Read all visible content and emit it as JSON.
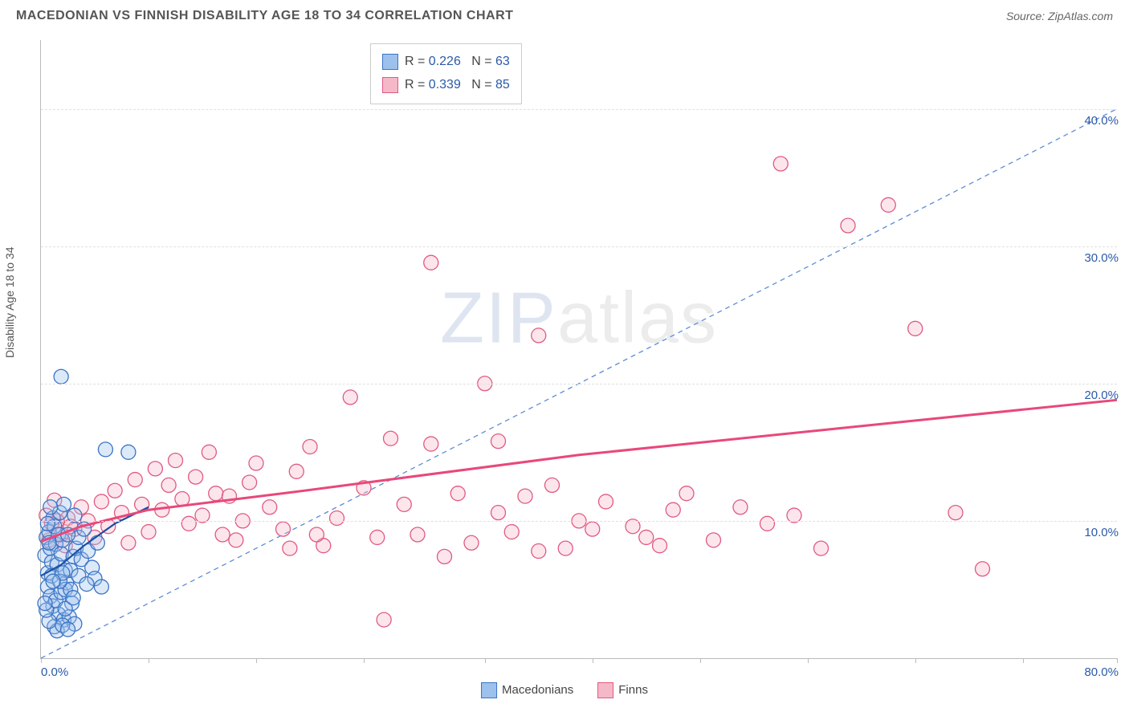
{
  "header": {
    "title": "MACEDONIAN VS FINNISH DISABILITY AGE 18 TO 34 CORRELATION CHART",
    "source_label": "Source: ",
    "source_value": "ZipAtlas.com"
  },
  "chart": {
    "type": "scatter",
    "ylabel": "Disability Age 18 to 34",
    "xlim": [
      0,
      80
    ],
    "ylim": [
      0,
      45
    ],
    "x_axis_label_min": "0.0%",
    "x_axis_label_max": "80.0%",
    "y_ticks": [
      {
        "value": 10,
        "label": "10.0%"
      },
      {
        "value": 20,
        "label": "20.0%"
      },
      {
        "value": 30,
        "label": "30.0%"
      },
      {
        "value": 40,
        "label": "40.0%"
      }
    ],
    "x_ticks": [
      0,
      8,
      16,
      24,
      33,
      41,
      49,
      57,
      65,
      73,
      80
    ],
    "background_color": "#ffffff",
    "grid_color": "#e0e0e0",
    "marker_radius": 9,
    "marker_fill_opacity": 0.35,
    "marker_stroke_width": 1.3,
    "watermark": "ZIPatlas",
    "reference_line": {
      "color": "#5b8dd6",
      "dash": "6,5",
      "width": 1.3,
      "x1": 0,
      "y1": 0,
      "x2": 80,
      "y2": 40
    }
  },
  "series": [
    {
      "id": "macedonians",
      "label": "Macedonians",
      "color_fill": "#9cc1ed",
      "color_stroke": "#3b74c4",
      "trend_color": "#1c4fa3",
      "trend_width": 2.2,
      "trend_points": [
        [
          0,
          6
        ],
        [
          1.5,
          6.8
        ],
        [
          3.2,
          8.2
        ],
        [
          5.5,
          9.8
        ],
        [
          8,
          11
        ]
      ],
      "R": "0.226",
      "N": "63",
      "points": [
        [
          0.3,
          7.5
        ],
        [
          0.4,
          8.8
        ],
        [
          0.5,
          6.2
        ],
        [
          0.6,
          9.2
        ],
        [
          0.7,
          8.0
        ],
        [
          0.8,
          7.0
        ],
        [
          0.9,
          10.2
        ],
        [
          1.0,
          9.6
        ],
        [
          1.1,
          8.3
        ],
        [
          1.2,
          6.8
        ],
        [
          1.3,
          9.0
        ],
        [
          1.4,
          10.6
        ],
        [
          1.5,
          7.6
        ],
        [
          1.6,
          8.6
        ],
        [
          1.7,
          11.2
        ],
        [
          1.8,
          6.4
        ],
        [
          0.5,
          5.2
        ],
        [
          0.7,
          4.5
        ],
        [
          0.9,
          3.8
        ],
        [
          1.1,
          4.2
        ],
        [
          1.3,
          3.2
        ],
        [
          1.5,
          4.8
        ],
        [
          1.7,
          2.8
        ],
        [
          1.9,
          5.5
        ],
        [
          2.1,
          3.0
        ],
        [
          2.3,
          4.0
        ],
        [
          2.5,
          2.5
        ],
        [
          1.0,
          2.3
        ],
        [
          1.2,
          2.0
        ],
        [
          1.6,
          2.4
        ],
        [
          2.0,
          2.1
        ],
        [
          0.6,
          2.7
        ],
        [
          0.4,
          3.5
        ],
        [
          0.8,
          6.0
        ],
        [
          2.2,
          6.4
        ],
        [
          2.4,
          7.4
        ],
        [
          2.6,
          8.0
        ],
        [
          2.8,
          8.8
        ],
        [
          3.0,
          7.2
        ],
        [
          3.2,
          9.4
        ],
        [
          3.5,
          7.8
        ],
        [
          3.8,
          6.6
        ],
        [
          4.0,
          5.8
        ],
        [
          4.2,
          8.4
        ],
        [
          4.5,
          5.2
        ],
        [
          2.0,
          9.0
        ],
        [
          2.5,
          10.4
        ],
        [
          1.8,
          5.0
        ],
        [
          2.2,
          5.0
        ],
        [
          0.3,
          4.0
        ],
        [
          0.5,
          9.8
        ],
        [
          0.7,
          11.0
        ],
        [
          1.4,
          5.6
        ],
        [
          1.6,
          6.2
        ],
        [
          2.8,
          6.0
        ],
        [
          3.4,
          5.4
        ],
        [
          4.8,
          15.2
        ],
        [
          6.5,
          15.0
        ],
        [
          1.5,
          20.5
        ],
        [
          0.9,
          5.6
        ],
        [
          1.8,
          3.6
        ],
        [
          2.4,
          4.4
        ],
        [
          0.6,
          8.4
        ]
      ]
    },
    {
      "id": "finns",
      "label": "Finns",
      "color_fill": "#f5b8c8",
      "color_stroke": "#e05a82",
      "trend_color": "#e8487a",
      "trend_width": 3.0,
      "trend_points": [
        [
          0,
          8.5
        ],
        [
          3,
          9.6
        ],
        [
          8,
          10.8
        ],
        [
          18,
          12
        ],
        [
          40,
          14.8
        ],
        [
          60,
          16.8
        ],
        [
          80,
          18.8
        ]
      ],
      "R": "0.339",
      "N": "85",
      "points": [
        [
          1.5,
          9.0
        ],
        [
          2.0,
          10.2
        ],
        [
          2.5,
          9.4
        ],
        [
          3.0,
          11.0
        ],
        [
          3.5,
          10.0
        ],
        [
          4.0,
          8.8
        ],
        [
          4.5,
          11.4
        ],
        [
          5.0,
          9.6
        ],
        [
          5.5,
          12.2
        ],
        [
          6.0,
          10.6
        ],
        [
          6.5,
          8.4
        ],
        [
          7.0,
          13.0
        ],
        [
          7.5,
          11.2
        ],
        [
          8.0,
          9.2
        ],
        [
          8.5,
          13.8
        ],
        [
          9.0,
          10.8
        ],
        [
          9.5,
          12.6
        ],
        [
          10.0,
          14.4
        ],
        [
          10.5,
          11.6
        ],
        [
          11.0,
          9.8
        ],
        [
          11.5,
          13.2
        ],
        [
          12.0,
          10.4
        ],
        [
          12.5,
          15.0
        ],
        [
          13.0,
          12.0
        ],
        [
          13.5,
          9.0
        ],
        [
          14.0,
          11.8
        ],
        [
          14.5,
          8.6
        ],
        [
          15.0,
          10.0
        ],
        [
          15.5,
          12.8
        ],
        [
          16.0,
          14.2
        ],
        [
          17.0,
          11.0
        ],
        [
          18.0,
          9.4
        ],
        [
          19.0,
          13.6
        ],
        [
          20.0,
          15.4
        ],
        [
          21.0,
          8.2
        ],
        [
          22.0,
          10.2
        ],
        [
          23.0,
          19.0
        ],
        [
          24.0,
          12.4
        ],
        [
          25.0,
          8.8
        ],
        [
          26.0,
          16.0
        ],
        [
          27.0,
          11.2
        ],
        [
          28.0,
          9.0
        ],
        [
          29.0,
          15.6
        ],
        [
          30.0,
          7.4
        ],
        [
          31.0,
          12.0
        ],
        [
          32.0,
          8.4
        ],
        [
          33.0,
          20.0
        ],
        [
          34.0,
          10.6
        ],
        [
          35.0,
          9.2
        ],
        [
          36.0,
          11.8
        ],
        [
          37.0,
          7.8
        ],
        [
          38.0,
          12.6
        ],
        [
          39.0,
          8.0
        ],
        [
          40.0,
          10.0
        ],
        [
          42.0,
          11.4
        ],
        [
          44.0,
          9.6
        ],
        [
          46.0,
          8.2
        ],
        [
          48.0,
          12.0
        ],
        [
          50.0,
          8.6
        ],
        [
          52.0,
          11.0
        ],
        [
          54.0,
          9.8
        ],
        [
          56.0,
          10.4
        ],
        [
          58.0,
          8.0
        ],
        [
          60.0,
          31.5
        ],
        [
          55.0,
          36.0
        ],
        [
          63.0,
          33.0
        ],
        [
          65.0,
          24.0
        ],
        [
          68.0,
          10.6
        ],
        [
          70.0,
          6.5
        ],
        [
          45.0,
          8.8
        ],
        [
          29.0,
          28.8
        ],
        [
          34.0,
          15.8
        ],
        [
          37.0,
          23.5
        ],
        [
          18.5,
          8.0
        ],
        [
          20.5,
          9.0
        ],
        [
          1.0,
          11.5
        ],
        [
          1.2,
          10.0
        ],
        [
          1.8,
          8.2
        ],
        [
          2.2,
          9.6
        ],
        [
          0.8,
          9.8
        ],
        [
          0.6,
          8.6
        ],
        [
          0.4,
          10.4
        ],
        [
          25.5,
          2.8
        ],
        [
          47.0,
          10.8
        ],
        [
          41.0,
          9.4
        ]
      ]
    }
  ],
  "legend_top": {
    "rows": [
      {
        "series": 0,
        "r_label": "R =",
        "n_label": "N ="
      },
      {
        "series": 1,
        "r_label": "R =",
        "n_label": "N ="
      }
    ]
  }
}
